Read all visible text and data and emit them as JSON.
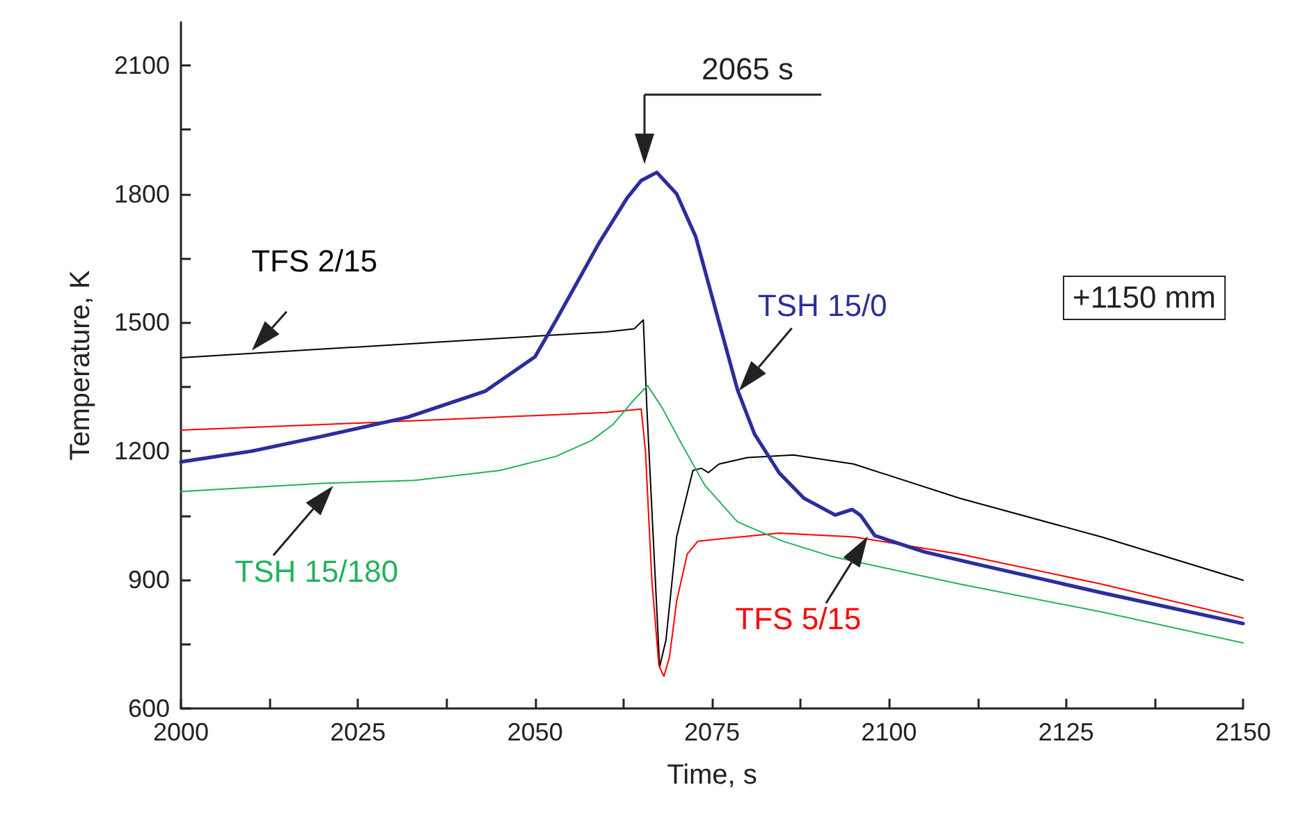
{
  "chart_data": {
    "type": "line",
    "xlabel": "Time, s",
    "ylabel": "Temperature, K",
    "xlim": [
      2000,
      2150
    ],
    "xticks": [
      2000,
      {
        "value": 2012.5,
        "label": null
      },
      2025,
      {
        "value": 2037.5,
        "label": null
      },
      2050,
      {
        "value": 2062.5,
        "label": null
      },
      2075,
      {
        "value": 2087.5,
        "label": null
      },
      2100,
      {
        "value": 2112.5,
        "label": null
      },
      2125,
      {
        "value": 2137.5,
        "label": null
      },
      2150
    ],
    "ylim": [
      600,
      2200
    ],
    "yticks": [
      600,
      {
        "value": 750,
        "label": null
      },
      900,
      {
        "value": 1050,
        "label": null
      },
      1200,
      {
        "value": 1350,
        "label": null
      },
      1500,
      {
        "value": 1650,
        "label": null
      },
      1800,
      {
        "value": 1950,
        "label": null
      },
      2100
    ],
    "grid": false,
    "legend": false,
    "marker": "none",
    "line_style": "solid",
    "series": [
      {
        "name": "TFS 2/15",
        "color": "#000000",
        "x": [
          2000,
          2010,
          2020,
          2030,
          2040,
          2050,
          2060,
          2064,
          2065.3,
          2065.8,
          2067.6,
          2068.5,
          2070,
          2072.3,
          2073.5,
          2074.5,
          2076,
          2080,
          2086.5,
          2095,
          2110,
          2130,
          2150
        ],
        "values": [
          1418,
          1428,
          1438,
          1448,
          1458,
          1468,
          1478,
          1485,
          1506,
          1300,
          697,
          760,
          1000,
          1155,
          1160,
          1150,
          1170,
          1185,
          1191,
          1170,
          1090,
          1000,
          899
        ]
      },
      {
        "name": "TFS 5/15",
        "color": "#ff0000",
        "x": [
          2000,
          2020,
          2040,
          2060,
          2065,
          2065.6,
          2066.5,
          2067.5,
          2068.2,
          2069,
          2070,
          2071.5,
          2073,
          2076,
          2084.5,
          2095,
          2110,
          2130,
          2150
        ],
        "values": [
          1249,
          1262,
          1276,
          1290,
          1298,
          1200,
          900,
          700,
          675,
          720,
          850,
          960,
          990,
          995,
          1009,
          1000,
          960,
          890,
          811
        ]
      },
      {
        "name": "TSH 15/0",
        "color": "#2b2e9c",
        "x": [
          2000,
          2010,
          2020,
          2032,
          2043,
          2050,
          2053,
          2059,
          2063,
          2065,
          2067.2,
          2070,
          2072.7,
          2076,
          2078.6,
          2081,
          2084.5,
          2088,
          2092.4,
          2094.8,
          2096,
          2098,
          2105,
          2112,
          2130,
          2150
        ],
        "values": [
          1175,
          1200,
          1235,
          1279,
          1340,
          1420,
          1506,
          1684,
          1790,
          1831,
          1850,
          1800,
          1700,
          1500,
          1343,
          1240,
          1149,
          1090,
          1051,
          1064,
          1050,
          1003,
          965,
          938,
          870,
          798
        ]
      },
      {
        "name": "TSH 15/180",
        "color": "#22b35a",
        "x": [
          2000,
          2020,
          2033,
          2045,
          2053,
          2058,
          2061,
          2064,
          2065.9,
          2068,
          2070.8,
          2074,
          2078.6,
          2085,
          2092,
          2110,
          2130,
          2150
        ],
        "values": [
          1106,
          1125,
          1132,
          1155,
          1188,
          1225,
          1262,
          1320,
          1353,
          1300,
          1214,
          1120,
          1035,
          990,
          954,
          890,
          825,
          753
        ]
      }
    ],
    "annotations": [
      "2065 s",
      "+1150 mm"
    ]
  }
}
